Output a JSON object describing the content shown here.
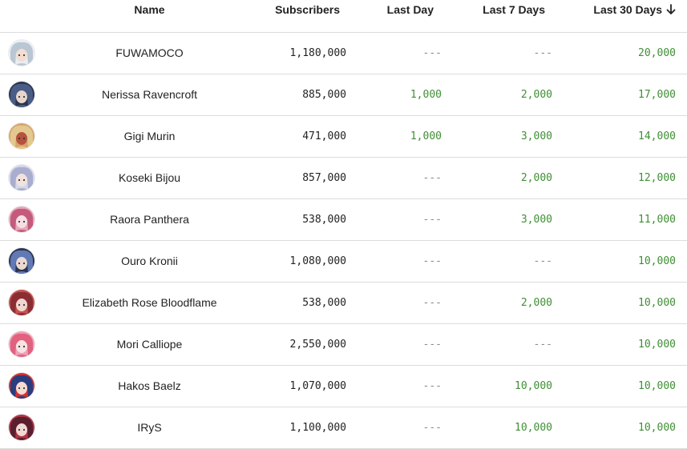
{
  "table": {
    "columns": {
      "name": "Name",
      "subscribers": "Subscribers",
      "last_day": "Last Day",
      "last_7_days": "Last 7 Days",
      "last_30_days": "Last 30 Days"
    },
    "sort": {
      "column": "last_30_days",
      "direction": "descending",
      "icon": "arrow-down-icon"
    },
    "rows": [
      {
        "name": "FUWAMOCO",
        "subscribers": "1,180,000",
        "last_day": "---",
        "last_7_days": "---",
        "last_30_days": "20,000",
        "avatar_colors": [
          "#e9eef3",
          "#b9c6d3",
          "#f3ddd2"
        ]
      },
      {
        "name": "Nerissa Ravencroft",
        "subscribers": "885,000",
        "last_day": "1,000",
        "last_7_days": "2,000",
        "last_30_days": "17,000",
        "avatar_colors": [
          "#2a3550",
          "#4a5d86",
          "#e8d6cc"
        ]
      },
      {
        "name": "Gigi Murin",
        "subscribers": "471,000",
        "last_day": "1,000",
        "last_7_days": "3,000",
        "last_30_days": "14,000",
        "avatar_colors": [
          "#d9a46a",
          "#e3c98f",
          "#b4533f"
        ]
      },
      {
        "name": "Koseki Bijou",
        "subscribers": "857,000",
        "last_day": "---",
        "last_7_days": "2,000",
        "last_30_days": "12,000",
        "avatar_colors": [
          "#d5d8ea",
          "#a9aed0",
          "#f1e3dc"
        ]
      },
      {
        "name": "Raora Panthera",
        "subscribers": "538,000",
        "last_day": "---",
        "last_7_days": "3,000",
        "last_30_days": "11,000",
        "avatar_colors": [
          "#e6a8b8",
          "#c45b7c",
          "#f6dfe2"
        ]
      },
      {
        "name": "Ouro Kronii",
        "subscribers": "1,080,000",
        "last_day": "---",
        "last_7_days": "---",
        "last_30_days": "10,000",
        "avatar_colors": [
          "#2b3450",
          "#6179b5",
          "#e9d9d2"
        ]
      },
      {
        "name": "Elizabeth Rose Bloodflame",
        "subscribers": "538,000",
        "last_day": "---",
        "last_7_days": "2,000",
        "last_30_days": "10,000",
        "avatar_colors": [
          "#c7524e",
          "#8a2e33",
          "#f0d6cf"
        ]
      },
      {
        "name": "Mori Calliope",
        "subscribers": "2,550,000",
        "last_day": "---",
        "last_7_days": "---",
        "last_30_days": "10,000",
        "avatar_colors": [
          "#f0a0b4",
          "#e1617f",
          "#f8e3e3"
        ]
      },
      {
        "name": "Hakos Baelz",
        "subscribers": "1,070,000",
        "last_day": "---",
        "last_7_days": "10,000",
        "last_30_days": "10,000",
        "avatar_colors": [
          "#d2322f",
          "#293d7f",
          "#f3dcd3"
        ]
      },
      {
        "name": "IRyS",
        "subscribers": "1,100,000",
        "last_day": "---",
        "last_7_days": "10,000",
        "last_30_days": "10,000",
        "avatar_colors": [
          "#b03545",
          "#5b1e2f",
          "#f0d9d4"
        ]
      }
    ]
  }
}
